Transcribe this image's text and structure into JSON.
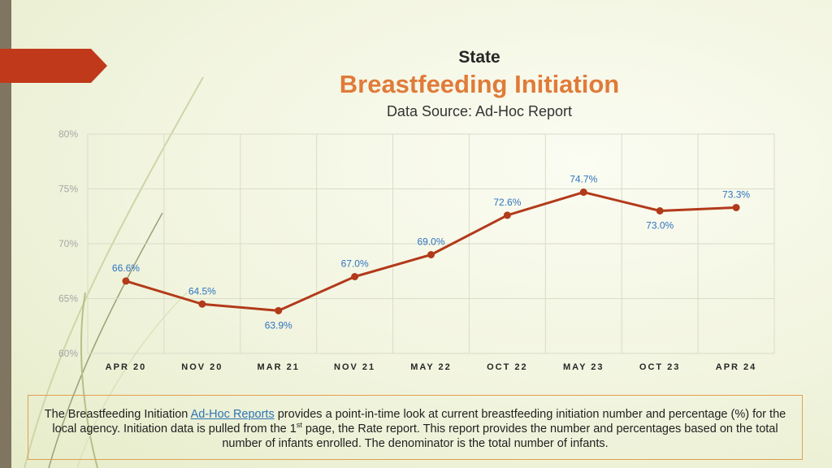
{
  "header": {
    "state": "State",
    "title": "Breastfeeding Initiation",
    "source": "Data Source: Ad-Hoc Report"
  },
  "colors": {
    "accent": "#e07b39",
    "line": "#b23a1a",
    "label": "#2f74c0",
    "tab": "#c0391a",
    "sidebar": "#807561"
  },
  "chart_data": {
    "type": "line",
    "categories": [
      "APR 20",
      "NOV 20",
      "MAR 21",
      "NOV 21",
      "MAY 22",
      "OCT 22",
      "MAY 23",
      "OCT 23",
      "APR 24"
    ],
    "values": [
      66.6,
      64.5,
      63.9,
      67.0,
      69.0,
      72.6,
      74.7,
      73.0,
      73.3
    ],
    "data_labels": [
      "66.6%",
      "64.5%",
      "63.9%",
      "67.0%",
      "69.0%",
      "72.6%",
      "74.7%",
      "73.0%",
      "73.3%"
    ],
    "ylim": [
      60,
      80
    ],
    "yticks": [
      60,
      65,
      70,
      75,
      80
    ],
    "ytick_labels": [
      "60%",
      "65%",
      "70%",
      "75%",
      "80%"
    ],
    "title": "Breastfeeding Initiation",
    "xlabel": "",
    "ylabel": "",
    "grid": true
  },
  "footer": {
    "text_before_link": "The Breastfeeding Initiation ",
    "link_text": "Ad-Hoc Reports",
    "text_after_link": " provides a point-in-time look at current breastfeeding initiation number and percentage (%) for the local agency. Initiation data is pulled from the 1",
    "superscript": "st",
    "text_end": " page, the Rate report. This report provides the number and percentages based on the total number of infants enrolled. The denominator is the total number of infants."
  }
}
